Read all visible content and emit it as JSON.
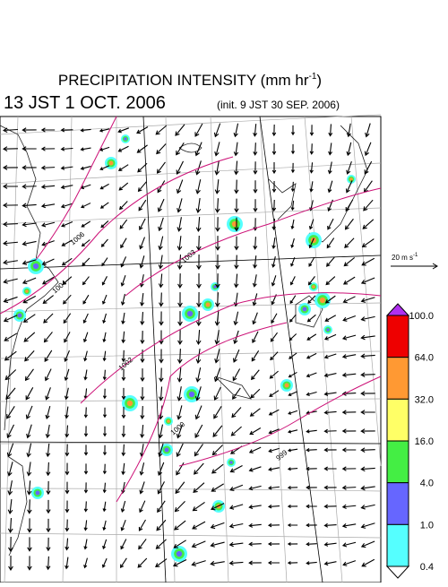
{
  "header": {
    "title": "PRECIPITATION INTENSITY (mm hr",
    "title_sup": "-1",
    "title_end": ")",
    "valid_time": "13 JST 1 OCT. 2006",
    "init_time": "(init. 9 JST 30 SEP. 2006)"
  },
  "reference_vector": {
    "label": "20 m s",
    "label_sup": "-1"
  },
  "isobars": [
    "1006",
    "1004",
    "1003",
    "1002",
    "1000",
    "999"
  ],
  "colorbar": {
    "labels": [
      "100.0",
      "64.0",
      "32.0",
      "16.0",
      "4.0",
      "1.0",
      "0.4"
    ],
    "colors": [
      "#ee0000",
      "#ff9933",
      "#ffff66",
      "#44ee44",
      "#6666ff",
      "#55ffff"
    ],
    "over_color": "#b030f0",
    "under_color": "#ffffff"
  }
}
